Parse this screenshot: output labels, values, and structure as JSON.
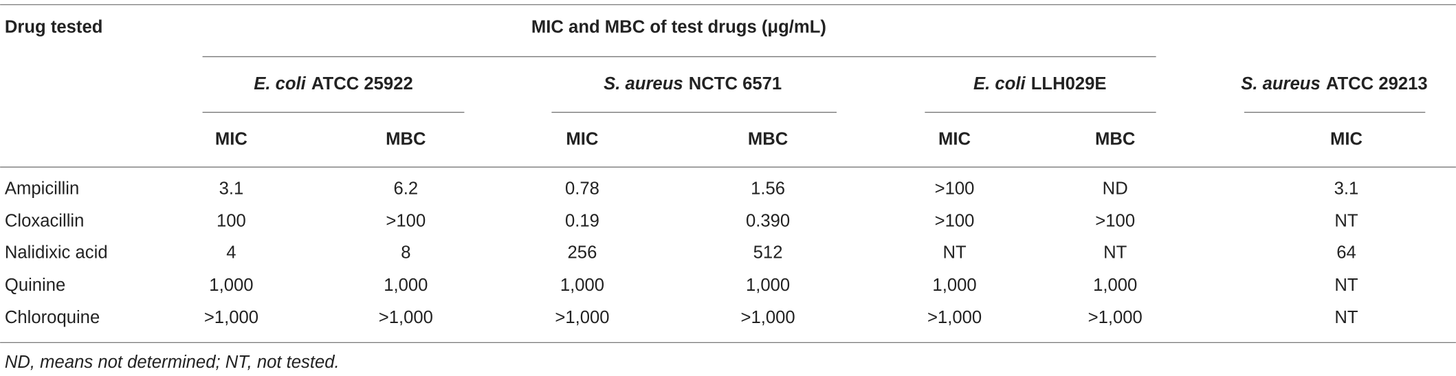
{
  "table": {
    "header": {
      "drug": "Drug tested",
      "span": "MIC and MBC of test drugs (μg/mL)"
    },
    "groups": [
      {
        "species": "E. coli",
        "strain": "ATCC 25922"
      },
      {
        "species": "S. aureus",
        "strain": "NCTC 6571"
      },
      {
        "species": "E. coli",
        "strain": "LLH029E"
      },
      {
        "species": "S. aureus",
        "strain": "ATCC 29213"
      }
    ],
    "subheaders": [
      "MIC",
      "MBC",
      "MIC",
      "MBC",
      "MIC",
      "MBC",
      "MIC"
    ],
    "rows": [
      [
        "Ampicillin",
        "3.1",
        "6.2",
        "0.78",
        "1.56",
        ">100",
        "ND",
        "3.1"
      ],
      [
        "Cloxacillin",
        "100",
        ">100",
        "0.19",
        "0.390",
        ">100",
        ">100",
        "NT"
      ],
      [
        "Nalidixic acid",
        "4",
        "8",
        "256",
        "512",
        "NT",
        "NT",
        "64"
      ],
      [
        "Quinine",
        "1,000",
        "1,000",
        "1,000",
        "1,000",
        "1,000",
        "1,000",
        "NT"
      ],
      [
        "Chloroquine",
        ">1,000",
        ">1,000",
        ">1,000",
        ">1,000",
        ">1,000",
        ">1,000",
        "NT"
      ]
    ]
  },
  "footnote": "ND, means not determined; NT, not tested."
}
